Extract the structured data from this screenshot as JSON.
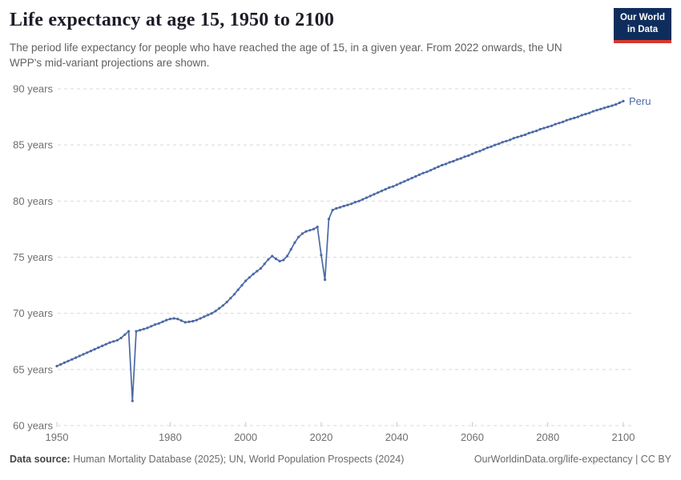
{
  "header": {
    "title": "Life expectancy at age 15, 1950 to 2100",
    "subtitle": "The period life expectancy for people who have reached the age of 15, in a given year. From 2022 onwards, the UN WPP's mid-variant projections are shown.",
    "logo": {
      "line1": "Our World",
      "line2": "in Data",
      "bg_color": "#0f2d5c",
      "accent_color": "#d7382e"
    }
  },
  "footer": {
    "datasource_label": "Data source:",
    "datasource_text": " Human Mortality Database (2025); UN, World Population Prospects (2024)",
    "link_text": "OurWorldinData.org/life-expectancy | CC BY"
  },
  "chart_data": {
    "type": "line",
    "title": "Life expectancy at age 15, 1950 to 2100",
    "xlabel": "",
    "ylabel": "",
    "xlim": [
      1950,
      2100
    ],
    "ylim": [
      60,
      90
    ],
    "grid": "horizontal-dashed",
    "x_ticks": [
      1950,
      1980,
      2000,
      2020,
      2040,
      2060,
      2080,
      2100
    ],
    "y_ticks": [
      {
        "value": 60,
        "label": "60 years"
      },
      {
        "value": 65,
        "label": "65 years"
      },
      {
        "value": 70,
        "label": "70 years"
      },
      {
        "value": 75,
        "label": "75 years"
      },
      {
        "value": 80,
        "label": "80 years"
      },
      {
        "value": 85,
        "label": "85 years"
      },
      {
        "value": 90,
        "label": "90 years"
      }
    ],
    "series": [
      {
        "name": "Peru",
        "color": "#4c69a5",
        "points": [
          [
            1950,
            65.3
          ],
          [
            1951,
            65.45
          ],
          [
            1952,
            65.6
          ],
          [
            1953,
            65.75
          ],
          [
            1954,
            65.9
          ],
          [
            1955,
            66.05
          ],
          [
            1956,
            66.2
          ],
          [
            1957,
            66.35
          ],
          [
            1958,
            66.5
          ],
          [
            1959,
            66.65
          ],
          [
            1960,
            66.8
          ],
          [
            1961,
            66.95
          ],
          [
            1962,
            67.1
          ],
          [
            1963,
            67.25
          ],
          [
            1964,
            67.4
          ],
          [
            1965,
            67.5
          ],
          [
            1966,
            67.6
          ],
          [
            1967,
            67.8
          ],
          [
            1968,
            68.1
          ],
          [
            1969,
            68.4
          ],
          [
            1970,
            62.2
          ],
          [
            1971,
            68.4
          ],
          [
            1972,
            68.5
          ],
          [
            1973,
            68.6
          ],
          [
            1974,
            68.7
          ],
          [
            1975,
            68.85
          ],
          [
            1976,
            69.0
          ],
          [
            1977,
            69.1
          ],
          [
            1978,
            69.25
          ],
          [
            1979,
            69.4
          ],
          [
            1980,
            69.5
          ],
          [
            1981,
            69.55
          ],
          [
            1982,
            69.5
          ],
          [
            1983,
            69.35
          ],
          [
            1984,
            69.2
          ],
          [
            1985,
            69.25
          ],
          [
            1986,
            69.3
          ],
          [
            1987,
            69.4
          ],
          [
            1988,
            69.55
          ],
          [
            1989,
            69.7
          ],
          [
            1990,
            69.85
          ],
          [
            1991,
            70.0
          ],
          [
            1992,
            70.2
          ],
          [
            1993,
            70.45
          ],
          [
            1994,
            70.7
          ],
          [
            1995,
            71.0
          ],
          [
            1996,
            71.35
          ],
          [
            1997,
            71.7
          ],
          [
            1998,
            72.1
          ],
          [
            1999,
            72.5
          ],
          [
            2000,
            72.9
          ],
          [
            2001,
            73.2
          ],
          [
            2002,
            73.5
          ],
          [
            2003,
            73.75
          ],
          [
            2004,
            74.0
          ],
          [
            2005,
            74.4
          ],
          [
            2006,
            74.8
          ],
          [
            2007,
            75.1
          ],
          [
            2008,
            74.85
          ],
          [
            2009,
            74.65
          ],
          [
            2010,
            74.75
          ],
          [
            2011,
            75.1
          ],
          [
            2012,
            75.7
          ],
          [
            2013,
            76.3
          ],
          [
            2014,
            76.8
          ],
          [
            2015,
            77.1
          ],
          [
            2016,
            77.3
          ],
          [
            2017,
            77.4
          ],
          [
            2018,
            77.5
          ],
          [
            2019,
            77.7
          ],
          [
            2020,
            75.2
          ],
          [
            2021,
            73.0
          ],
          [
            2022,
            78.4
          ],
          [
            2023,
            79.2
          ],
          [
            2024,
            79.35
          ],
          [
            2025,
            79.45
          ],
          [
            2026,
            79.55
          ],
          [
            2027,
            79.65
          ],
          [
            2028,
            79.75
          ],
          [
            2029,
            79.9
          ],
          [
            2030,
            80.0
          ],
          [
            2031,
            80.15
          ],
          [
            2032,
            80.3
          ],
          [
            2033,
            80.45
          ],
          [
            2034,
            80.6
          ],
          [
            2035,
            80.75
          ],
          [
            2036,
            80.9
          ],
          [
            2037,
            81.05
          ],
          [
            2038,
            81.2
          ],
          [
            2039,
            81.3
          ],
          [
            2040,
            81.45
          ],
          [
            2041,
            81.6
          ],
          [
            2042,
            81.75
          ],
          [
            2043,
            81.9
          ],
          [
            2044,
            82.05
          ],
          [
            2045,
            82.2
          ],
          [
            2046,
            82.35
          ],
          [
            2047,
            82.5
          ],
          [
            2048,
            82.6
          ],
          [
            2049,
            82.75
          ],
          [
            2050,
            82.9
          ],
          [
            2051,
            83.05
          ],
          [
            2052,
            83.2
          ],
          [
            2053,
            83.3
          ],
          [
            2054,
            83.45
          ],
          [
            2055,
            83.55
          ],
          [
            2056,
            83.7
          ],
          [
            2057,
            83.8
          ],
          [
            2058,
            83.95
          ],
          [
            2059,
            84.05
          ],
          [
            2060,
            84.2
          ],
          [
            2061,
            84.35
          ],
          [
            2062,
            84.45
          ],
          [
            2063,
            84.6
          ],
          [
            2064,
            84.75
          ],
          [
            2065,
            84.85
          ],
          [
            2066,
            85.0
          ],
          [
            2067,
            85.1
          ],
          [
            2068,
            85.25
          ],
          [
            2069,
            85.35
          ],
          [
            2070,
            85.45
          ],
          [
            2071,
            85.6
          ],
          [
            2072,
            85.7
          ],
          [
            2073,
            85.8
          ],
          [
            2074,
            85.9
          ],
          [
            2075,
            86.05
          ],
          [
            2076,
            86.15
          ],
          [
            2077,
            86.25
          ],
          [
            2078,
            86.4
          ],
          [
            2079,
            86.5
          ],
          [
            2080,
            86.6
          ],
          [
            2081,
            86.7
          ],
          [
            2082,
            86.85
          ],
          [
            2083,
            86.95
          ],
          [
            2084,
            87.05
          ],
          [
            2085,
            87.2
          ],
          [
            2086,
            87.3
          ],
          [
            2087,
            87.4
          ],
          [
            2088,
            87.5
          ],
          [
            2089,
            87.65
          ],
          [
            2090,
            87.75
          ],
          [
            2091,
            87.85
          ],
          [
            2092,
            88.0
          ],
          [
            2093,
            88.1
          ],
          [
            2094,
            88.2
          ],
          [
            2095,
            88.3
          ],
          [
            2096,
            88.4
          ],
          [
            2097,
            88.5
          ],
          [
            2098,
            88.6
          ],
          [
            2099,
            88.75
          ],
          [
            2100,
            88.9
          ]
        ]
      }
    ],
    "colors": {
      "gridline": "#d9d9d9",
      "tick_text": "#6e6e6e",
      "axis_tick": "#c8c8c8"
    }
  }
}
